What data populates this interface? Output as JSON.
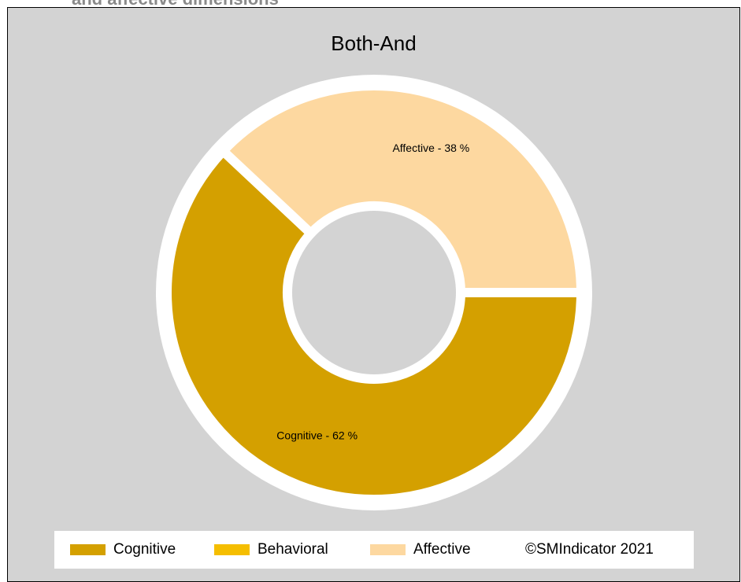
{
  "header": {
    "partial_heading": "and affective dimensions"
  },
  "chart_data": {
    "type": "pie",
    "variant": "donut",
    "title": "Both-And",
    "categories": [
      "Cognitive",
      "Behavioral",
      "Affective"
    ],
    "values": [
      62,
      0,
      38
    ],
    "colors": [
      "#d4a000",
      "#f5be00",
      "#fdd8a0"
    ],
    "slice_labels": [
      "Cognitive - 62 %",
      "",
      "Affective - 38 %"
    ],
    "legend": {
      "position": "bottom",
      "entries": [
        "Cognitive",
        "Behavioral",
        "Affective"
      ]
    },
    "copyright": "©SMIndicator 2021"
  }
}
